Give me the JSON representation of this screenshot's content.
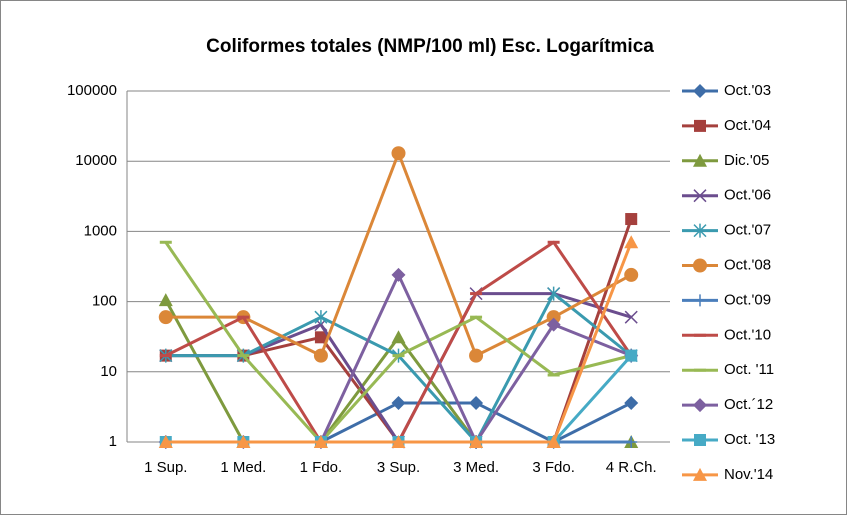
{
  "chart_data": {
    "type": "line",
    "title": "Coliformes totales (NMP/100 ml) Esc. Logarítmica",
    "categories": [
      "1 Sup.",
      "1 Med.",
      "1 Fdo.",
      "3 Sup.",
      "3 Med.",
      "3 Fdo.",
      "4 R.Ch."
    ],
    "ylim": [
      1,
      100000
    ],
    "yticks": [
      1,
      10,
      100,
      1000,
      10000,
      100000
    ],
    "ylog": true,
    "grid": true,
    "legend": "right",
    "series": [
      {
        "name": "Oct.'03",
        "color": "#3e6da8",
        "marker": "diamond",
        "values": [
          1,
          1,
          1,
          3.6,
          3.6,
          1,
          3.6
        ]
      },
      {
        "name": "Oct.'04",
        "color": "#a5403d",
        "marker": "square",
        "values": [
          17,
          17,
          31,
          1,
          1,
          1,
          1500
        ]
      },
      {
        "name": "Dic.'05",
        "color": "#7e9a3e",
        "marker": "triangle",
        "values": [
          105,
          1,
          1,
          31,
          1,
          1,
          1
        ]
      },
      {
        "name": "Oct.'06",
        "color": "#6b4d8e",
        "marker": "x",
        "values": [
          17,
          17,
          47,
          1,
          130,
          130,
          60
        ]
      },
      {
        "name": "Oct.'07",
        "color": "#3a9aaf",
        "marker": "star",
        "values": [
          17,
          17,
          60,
          17,
          1,
          130,
          17
        ]
      },
      {
        "name": "Oct.'08",
        "color": "#db8738",
        "marker": "circle",
        "values": [
          60,
          60,
          17,
          13000,
          17,
          60,
          240
        ]
      },
      {
        "name": "Oct.'09",
        "color": "#4a7ebb",
        "marker": "plus",
        "values": [
          1,
          1,
          1,
          1,
          1,
          1,
          1
        ]
      },
      {
        "name": "Oct.'10",
        "color": "#be4b48",
        "marker": "dash",
        "values": [
          17,
          60,
          1,
          1,
          130,
          700,
          17
        ]
      },
      {
        "name": "Oct. '11",
        "color": "#98b954",
        "marker": "dash",
        "values": [
          700,
          17,
          1,
          17,
          60,
          9,
          17
        ]
      },
      {
        "name": "Oct.´12",
        "color": "#7d60a0",
        "marker": "diamond",
        "values": [
          1,
          1,
          1,
          240,
          1,
          47,
          17
        ]
      },
      {
        "name": "Oct. '13",
        "color": "#46aac5",
        "marker": "square",
        "values": [
          1,
          1,
          1,
          1,
          1,
          1,
          17
        ]
      },
      {
        "name": "Nov.'14",
        "color": "#f79646",
        "marker": "triangle",
        "values": [
          1,
          1,
          1,
          1,
          1,
          1,
          700
        ]
      }
    ]
  }
}
